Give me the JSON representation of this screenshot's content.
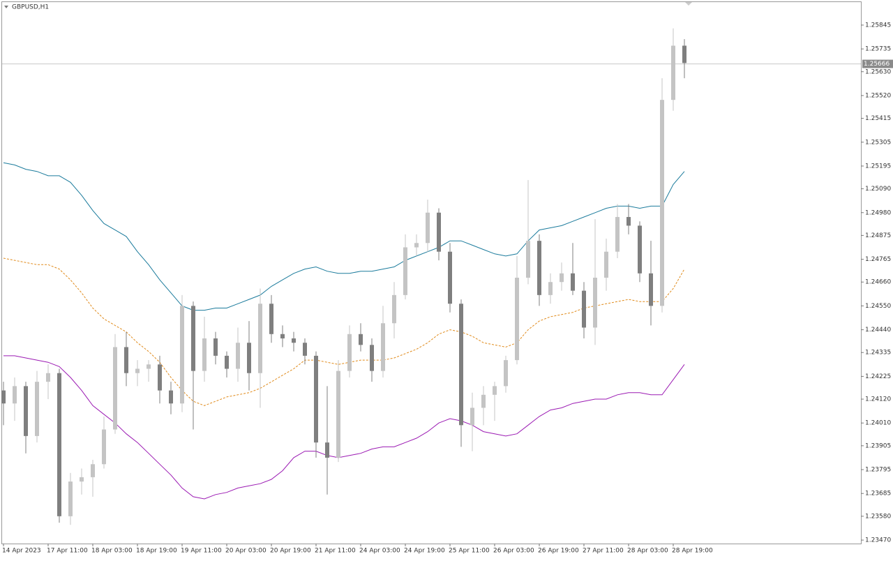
{
  "chart_data": {
    "type": "candlestick",
    "title": "GBPUSD,H1",
    "categories": [
      "14 Apr 2023",
      null,
      null,
      null,
      "17 Apr 11:00",
      null,
      null,
      null,
      "18 Apr 03:00",
      null,
      null,
      null,
      "18 Apr 19:00",
      null,
      null,
      null,
      "19 Apr 11:00",
      null,
      null,
      null,
      "20 Apr 03:00",
      null,
      null,
      null,
      "20 Apr 19:00",
      null,
      null,
      null,
      "21 Apr 11:00",
      null,
      null,
      null,
      "24 Apr 03:00",
      null,
      null,
      null,
      "24 Apr 19:00",
      null,
      null,
      null,
      "25 Apr 11:00",
      null,
      null,
      null,
      "26 Apr 03:00",
      null,
      null,
      null,
      "26 Apr 19:00",
      null,
      null,
      null,
      "27 Apr 11:00",
      null,
      null,
      null,
      "28 Apr 03:00",
      null,
      null,
      null,
      "28 Apr 19:00",
      null
    ],
    "open": [
      1.2416,
      1.241,
      1.2418,
      1.2395,
      1.242,
      1.2424,
      1.2358,
      1.2374,
      1.2376,
      1.2382,
      1.2398,
      1.2436,
      1.2424,
      1.2426,
      1.2428,
      1.2416,
      1.241,
      1.2455,
      1.2425,
      1.244,
      1.2432,
      1.2426,
      1.2438,
      1.2424,
      1.2456,
      1.2442,
      1.244,
      1.2438,
      1.2432,
      1.2392,
      1.2385,
      1.2425,
      1.2442,
      1.2437,
      1.2425,
      1.2447,
      1.246,
      1.2482,
      1.2484,
      1.2498,
      1.248,
      1.2456,
      1.24,
      1.2408,
      1.2414,
      1.2418,
      1.243,
      1.2468,
      1.2485,
      1.246,
      1.2466,
      1.247,
      1.2462,
      1.2445,
      1.2468,
      1.248,
      1.2496,
      1.2492,
      1.247,
      1.2455,
      1.255,
      1.2575
    ],
    "high": [
      1.242,
      1.2422,
      1.242,
      1.2425,
      1.2428,
      1.2426,
      1.2378,
      1.238,
      1.2384,
      1.2404,
      1.2442,
      1.2443,
      1.243,
      1.243,
      1.2432,
      1.242,
      1.246,
      1.2457,
      1.245,
      1.2443,
      1.2434,
      1.2445,
      1.2448,
      1.2463,
      1.246,
      1.2446,
      1.2443,
      1.244,
      1.2434,
      1.2418,
      1.243,
      1.2446,
      1.2447,
      1.244,
      1.2455,
      1.2466,
      1.2488,
      1.2488,
      1.2504,
      1.25,
      1.2484,
      1.2458,
      1.2415,
      1.2418,
      1.242,
      1.2432,
      1.2478,
      1.2513,
      1.2488,
      1.247,
      1.2475,
      1.2484,
      1.2466,
      1.2495,
      1.2486,
      1.2502,
      1.2502,
      1.2494,
      1.2485,
      1.256,
      1.2583,
      1.2578
    ],
    "low": [
      1.24,
      1.2402,
      1.2387,
      1.2392,
      1.2412,
      1.2355,
      1.2354,
      1.2368,
      1.2367,
      1.238,
      1.2396,
      1.2418,
      1.2418,
      1.242,
      1.241,
      1.2405,
      1.2406,
      1.2398,
      1.242,
      1.2428,
      1.2422,
      1.242,
      1.2416,
      1.2408,
      1.2438,
      1.2436,
      1.2434,
      1.2428,
      1.2385,
      1.2368,
      1.2383,
      1.2422,
      1.2434,
      1.242,
      1.2422,
      1.244,
      1.2458,
      1.2478,
      1.248,
      1.2476,
      1.2452,
      1.239,
      1.2388,
      1.24,
      1.2402,
      1.2415,
      1.2428,
      1.2465,
      1.2455,
      1.2456,
      1.2462,
      1.246,
      1.244,
      1.2437,
      1.2462,
      1.2477,
      1.2488,
      1.2466,
      1.2446,
      1.2452,
      1.2545,
      1.256
    ],
    "close": [
      1.241,
      1.2418,
      1.2395,
      1.242,
      1.2424,
      1.2358,
      1.2374,
      1.2376,
      1.2382,
      1.2398,
      1.2436,
      1.2424,
      1.2426,
      1.2428,
      1.2416,
      1.241,
      1.2455,
      1.2425,
      1.244,
      1.2432,
      1.2426,
      1.2438,
      1.2424,
      1.2456,
      1.2442,
      1.244,
      1.2438,
      1.2432,
      1.2392,
      1.2385,
      1.2425,
      1.2442,
      1.2437,
      1.2425,
      1.2447,
      1.246,
      1.2482,
      1.2484,
      1.2498,
      1.248,
      1.2456,
      1.24,
      1.2408,
      1.2414,
      1.2418,
      1.243,
      1.2468,
      1.2485,
      1.246,
      1.2466,
      1.247,
      1.2462,
      1.2445,
      1.2468,
      1.248,
      1.2496,
      1.2492,
      1.247,
      1.2455,
      1.255,
      1.2575,
      1.2567
    ],
    "up_color": "#c4c4c4",
    "down_color": "#7f7f7f",
    "bands": [
      {
        "color": "#1b7b9c",
        "dashed": false,
        "values": [
          1.2521,
          1.252,
          1.2518,
          1.2517,
          1.2515,
          1.2515,
          1.2512,
          1.2506,
          1.2499,
          1.2493,
          1.249,
          1.2487,
          1.248,
          1.2474,
          1.2467,
          1.2461,
          1.2455,
          1.2453,
          1.2453,
          1.2454,
          1.2454,
          1.2456,
          1.2458,
          1.246,
          1.2464,
          1.2467,
          1.247,
          1.2472,
          1.2473,
          1.2471,
          1.247,
          1.247,
          1.2471,
          1.2471,
          1.2472,
          1.2473,
          1.2476,
          1.2478,
          1.248,
          1.2482,
          1.2485,
          1.2485,
          1.2483,
          1.2481,
          1.2479,
          1.2478,
          1.2479,
          1.2485,
          1.249,
          1.2491,
          1.2492,
          1.2494,
          1.2496,
          1.2498,
          1.25,
          1.2501,
          1.2501,
          1.25,
          1.2501,
          1.2501,
          1.2511,
          1.2517
        ]
      },
      {
        "color": "#e08a1a",
        "dashed": true,
        "values": [
          1.2477,
          1.2476,
          1.2475,
          1.2474,
          1.2474,
          1.2472,
          1.2467,
          1.2461,
          1.2454,
          1.2449,
          1.2446,
          1.2443,
          1.2438,
          1.2434,
          1.2429,
          1.2422,
          1.2416,
          1.2411,
          1.2409,
          1.2411,
          1.2413,
          1.2414,
          1.2415,
          1.2417,
          1.242,
          1.2423,
          1.2426,
          1.243,
          1.243,
          1.2429,
          1.2428,
          1.2429,
          1.243,
          1.243,
          1.243,
          1.2431,
          1.2433,
          1.2435,
          1.2438,
          1.2442,
          1.2444,
          1.2443,
          1.2441,
          1.2438,
          1.2437,
          1.2436,
          1.2438,
          1.2444,
          1.2448,
          1.245,
          1.2451,
          1.2452,
          1.2454,
          1.2455,
          1.2456,
          1.2457,
          1.2458,
          1.2457,
          1.2457,
          1.2457,
          1.2463,
          1.2472
        ]
      },
      {
        "color": "#9b1ab3",
        "dashed": false,
        "values": [
          1.2432,
          1.2432,
          1.2431,
          1.243,
          1.2429,
          1.2427,
          1.2422,
          1.2416,
          1.2409,
          1.2405,
          1.2401,
          1.2396,
          1.2392,
          1.2387,
          1.2382,
          1.2377,
          1.2371,
          1.2367,
          1.2366,
          1.2368,
          1.2369,
          1.2371,
          1.2372,
          1.2373,
          1.2375,
          1.2379,
          1.2385,
          1.2388,
          1.2388,
          1.2386,
          1.2385,
          1.2386,
          1.2387,
          1.2389,
          1.239,
          1.239,
          1.2392,
          1.2394,
          1.2397,
          1.2401,
          1.2403,
          1.2402,
          1.24,
          1.2397,
          1.2396,
          1.2395,
          1.2396,
          1.24,
          1.2404,
          1.2407,
          1.2408,
          1.241,
          1.2411,
          1.2412,
          1.2412,
          1.2414,
          1.2415,
          1.2415,
          1.2414,
          1.2414,
          1.2421,
          1.2428
        ]
      }
    ],
    "current_price": 1.25666,
    "ylim": [
      1.23454,
      1.25951
    ],
    "yticks": [
      1.25845,
      1.25735,
      {
        "value": 1.2563,
        "label": "1.25630"
      },
      {
        "value": 1.2552,
        "label": "1.25520"
      },
      1.25415,
      1.25305,
      1.25195,
      {
        "value": 1.2509,
        "label": "1.25090"
      },
      {
        "value": 1.2498,
        "label": "1.24980"
      },
      1.24875,
      1.24765,
      {
        "value": 1.2466,
        "label": "1.24660"
      },
      {
        "value": 1.2455,
        "label": "1.24550"
      },
      {
        "value": 1.2444,
        "label": "1.24440"
      },
      1.24335,
      1.24225,
      {
        "value": 1.2412,
        "label": "1.24120"
      },
      {
        "value": 1.2401,
        "label": "1.24010"
      },
      1.23905,
      1.23795,
      1.23685,
      {
        "value": 1.2358,
        "label": "1.23580"
      },
      {
        "value": 1.2347,
        "label": "1.23470"
      }
    ]
  }
}
